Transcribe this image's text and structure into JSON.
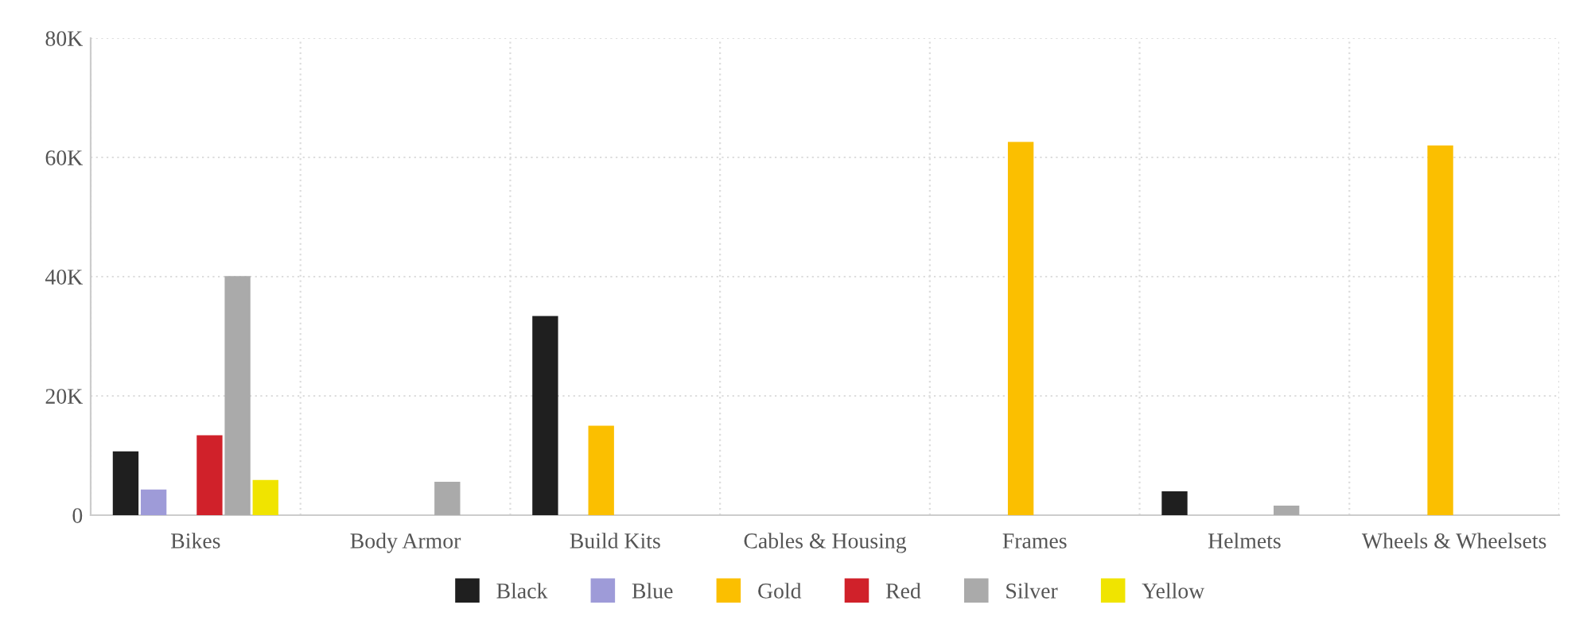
{
  "chart_data": {
    "type": "bar",
    "categories": [
      "Bikes",
      "Body Armor",
      "Build Kits",
      "Cables & Housing",
      "Frames",
      "Helmets",
      "Wheels & Wheelsets"
    ],
    "series": [
      {
        "name": "Black",
        "color": "#1f1f1f",
        "values": [
          10700,
          null,
          33400,
          null,
          null,
          4000,
          null
        ]
      },
      {
        "name": "Blue",
        "color": "#9e9bd8",
        "values": [
          4300,
          null,
          null,
          null,
          null,
          null,
          null
        ]
      },
      {
        "name": "Gold",
        "color": "#fbbf00",
        "values": [
          null,
          null,
          15000,
          null,
          62600,
          null,
          62000
        ]
      },
      {
        "name": "Red",
        "color": "#d0212a",
        "values": [
          13400,
          null,
          null,
          null,
          null,
          null,
          null
        ]
      },
      {
        "name": "Silver",
        "color": "#aaaaaa",
        "values": [
          40100,
          5600,
          null,
          null,
          null,
          1600,
          null
        ]
      },
      {
        "name": "Yellow",
        "color": "#f0e400",
        "values": [
          5900,
          null,
          null,
          null,
          null,
          null,
          null
        ]
      }
    ],
    "ylim": [
      0,
      80000
    ],
    "yticks": [
      {
        "value": 0,
        "label": "0"
      },
      {
        "value": 20000,
        "label": "20K"
      },
      {
        "value": 40000,
        "label": "40K"
      },
      {
        "value": 60000,
        "label": "60K"
      },
      {
        "value": 80000,
        "label": "80K"
      }
    ],
    "grid": true,
    "legend": "bottom"
  }
}
